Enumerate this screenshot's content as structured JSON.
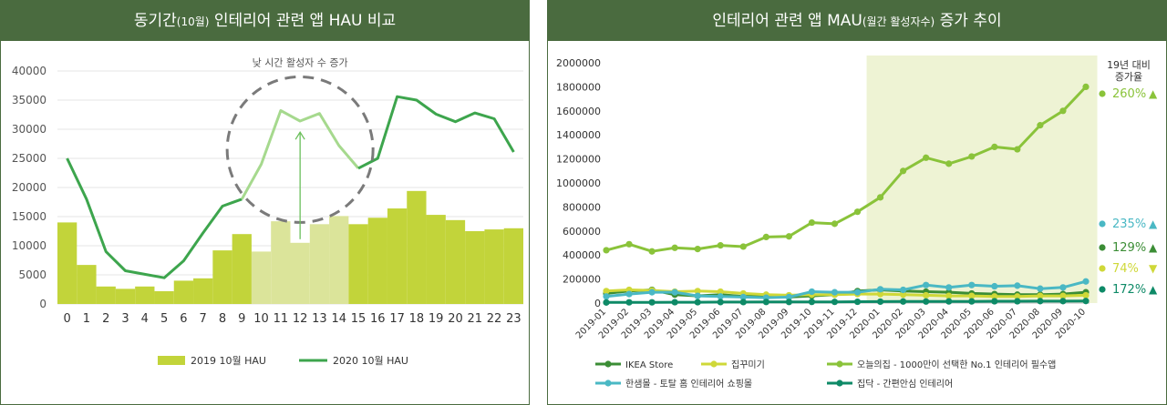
{
  "colors": {
    "header_bg": "#4a6b3f",
    "hau2019": "#c2d43a",
    "hau2020": "#3da54d",
    "hau2020_light": "#a6d98e",
    "highlight": "#eef3d4",
    "grid": "#e6e6e6",
    "dashed": "#7a7a7a"
  },
  "chart_data": [
    {
      "type": "bar+line",
      "title": "동기간(10월) 인테리어 관련 앱 HAU 비교",
      "title_main_a": "동기간",
      "title_small": "(10월)",
      "title_main_b": " 인테리어 관련 앱 HAU 비교",
      "categories": [
        "0",
        "1",
        "2",
        "3",
        "4",
        "5",
        "6",
        "7",
        "8",
        "9",
        "10",
        "11",
        "12",
        "13",
        "14",
        "15",
        "16",
        "17",
        "18",
        "19",
        "20",
        "21",
        "22",
        "23"
      ],
      "y_ticks": [
        "0",
        "5000",
        "10000",
        "15000",
        "20000",
        "25000",
        "30000",
        "35000",
        "40000"
      ],
      "ylim": [
        0,
        40000
      ],
      "series": [
        {
          "name": "2019 10월 HAU",
          "type": "bar",
          "values": [
            14000,
            6700,
            3000,
            2600,
            3000,
            2200,
            4000,
            4400,
            9200,
            12000,
            9000,
            14200,
            10500,
            13700,
            15100,
            13700,
            14800,
            16400,
            19400,
            15300,
            14400,
            12500,
            12800,
            13000
          ]
        },
        {
          "name": "2020 10월 HAU",
          "type": "line",
          "values": [
            25000,
            18000,
            9000,
            5700,
            5100,
            4500,
            7400,
            12200,
            16800,
            18000,
            24000,
            33200,
            31400,
            32700,
            27200,
            23300,
            25000,
            35600,
            35000,
            32600,
            31300,
            32800,
            31800,
            26100
          ]
        }
      ],
      "highlight_hours": [
        9,
        15
      ],
      "annotation": "낮 시간 활성자 수 증가",
      "legend": {
        "s2019": "2019 10월 HAU",
        "s2020": "2020 10월 HAU"
      }
    },
    {
      "type": "line",
      "title": "인테리어 관련 앱 MAU(월간 활성자수) 증가 추이",
      "title_main_a": "인테리어 관련 앱 MAU",
      "title_small": "(월간 활성자수)",
      "title_main_b": " 증가 추이",
      "categories": [
        "2019-01",
        "2019-02",
        "2019-03",
        "2019-04",
        "2019-05",
        "2019-06",
        "2019-07",
        "2019-08",
        "2019-09",
        "2019-10",
        "2019-11",
        "2019-12",
        "2020-01",
        "2020-02",
        "2020-03",
        "2020-04",
        "2020-05",
        "2020-06",
        "2020-07",
        "2020-08",
        "2020-09",
        "2020-10"
      ],
      "y_ticks": [
        "0",
        "200000",
        "400000",
        "600000",
        "800000",
        "1000000",
        "1200000",
        "1400000",
        "1600000",
        "1800000",
        "2000000"
      ],
      "ylim": [
        0,
        2000000
      ],
      "highlight_range": [
        "2020-01",
        "2020-10"
      ],
      "yoy_header_1": "19년 대비",
      "yoy_header_2": "증가율",
      "series": [
        {
          "name": "IKEA Store",
          "color": "#3b8d35",
          "values": [
            80000,
            100000,
            110000,
            70000,
            60000,
            70000,
            55000,
            60000,
            50000,
            60000,
            70000,
            100000,
            110000,
            100000,
            95000,
            90000,
            80000,
            75000,
            70000,
            70000,
            75000,
            90000
          ]
        },
        {
          "name": "집꾸미기",
          "color": "#cfd838",
          "values": [
            100000,
            110000,
            105000,
            95000,
            100000,
            95000,
            80000,
            70000,
            65000,
            70000,
            70000,
            75000,
            75000,
            70000,
            65000,
            60000,
            60000,
            55000,
            55000,
            60000,
            60000,
            65000
          ]
        },
        {
          "name": "오늘의집 - 1000만이 선택한 No.1 인테리어 필수앱",
          "color": "#8ac33a",
          "values": [
            440000,
            490000,
            430000,
            460000,
            450000,
            480000,
            470000,
            550000,
            555000,
            670000,
            660000,
            760000,
            880000,
            1100000,
            1210000,
            1160000,
            1220000,
            1300000,
            1280000,
            1480000,
            1600000,
            1800000
          ]
        },
        {
          "name": "한샘몰 - 토탈 홈 인테리어 쇼핑몰",
          "color": "#4ab8c4",
          "values": [
            55000,
            75000,
            90000,
            90000,
            60000,
            55000,
            50000,
            45000,
            50000,
            95000,
            90000,
            90000,
            115000,
            110000,
            150000,
            130000,
            150000,
            140000,
            145000,
            120000,
            130000,
            180000
          ]
        },
        {
          "name": "집닥 - 간편안심 인테리어",
          "color": "#0e8a67",
          "values": [
            5000,
            6000,
            6000,
            7000,
            7000,
            8000,
            8000,
            9000,
            9000,
            10000,
            10000,
            11000,
            12000,
            13000,
            13000,
            14000,
            14000,
            15000,
            15000,
            16000,
            16000,
            17000
          ]
        }
      ],
      "yoy": [
        {
          "label": "260%",
          "arrow": "▲",
          "color": "#8ac33a"
        },
        {
          "label": "235%",
          "arrow": "▲",
          "color": "#4ab8c4"
        },
        {
          "label": "129%",
          "arrow": "▲",
          "color": "#3b8d35"
        },
        {
          "label": "74%",
          "arrow": "▼",
          "color": "#cfd838"
        },
        {
          "label": "172%",
          "arrow": "▲",
          "color": "#0e8a67"
        }
      ]
    }
  ]
}
